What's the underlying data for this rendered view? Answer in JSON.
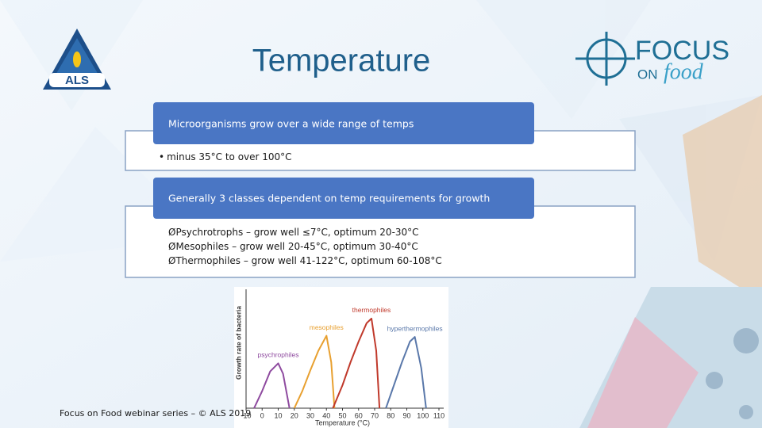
{
  "header": {
    "title": "Temperature"
  },
  "logos": {
    "left": "ALS",
    "right_focus": "FOCUS",
    "right_on": "ON",
    "right_food": "food"
  },
  "boxes": [
    {
      "heading": "Microorganisms grow over a wide range of temps",
      "bullets": [
        {
          "marker": "•",
          "text": "minus 35°C to over 100°C"
        }
      ]
    },
    {
      "heading": "Generally 3 classes dependent on temp requirements for growth",
      "bullets": [
        {
          "marker": "Ø",
          "text": "Psychrotrophs – grow well ≤7°C, optimum 20-30°C"
        },
        {
          "marker": "Ø",
          "text": "Mesophiles – grow well 20-45°C, optimum 30-40°C"
        },
        {
          "marker": "Ø",
          "text": "Thermophiles – grow well 41-122°C, optimum 60-108°C"
        }
      ]
    }
  ],
  "footer": "Focus on Food webinar series – © ALS 2019",
  "chart_data": {
    "type": "line",
    "xlabel": "Temperature (°C)",
    "ylabel": "Growth rate of bacteria",
    "xlim": [
      -10,
      110
    ],
    "xticks": [
      -10,
      0,
      10,
      20,
      30,
      40,
      50,
      60,
      70,
      80,
      90,
      100,
      110
    ],
    "ylim": [
      0,
      1
    ],
    "series": [
      {
        "name": "psychrophiles",
        "color": "#8e4a9f",
        "x": [
          -5,
          0,
          5,
          10,
          13,
          17
        ],
        "values": [
          0,
          0.15,
          0.32,
          0.39,
          0.3,
          0
        ]
      },
      {
        "name": "mesophiles",
        "color": "#e8a030",
        "x": [
          20,
          25,
          30,
          35,
          40,
          43,
          45
        ],
        "values": [
          0,
          0.15,
          0.33,
          0.5,
          0.63,
          0.4,
          0
        ]
      },
      {
        "name": "thermophiles",
        "color": "#c0392b",
        "x": [
          44,
          50,
          55,
          60,
          65,
          68,
          71,
          73
        ],
        "values": [
          0,
          0.2,
          0.4,
          0.58,
          0.74,
          0.78,
          0.5,
          0
        ]
      },
      {
        "name": "hyperthermophiles",
        "color": "#5a78aa",
        "x": [
          77,
          82,
          87,
          92,
          95,
          99,
          102
        ],
        "values": [
          0,
          0.2,
          0.4,
          0.58,
          0.62,
          0.35,
          0
        ]
      }
    ]
  }
}
